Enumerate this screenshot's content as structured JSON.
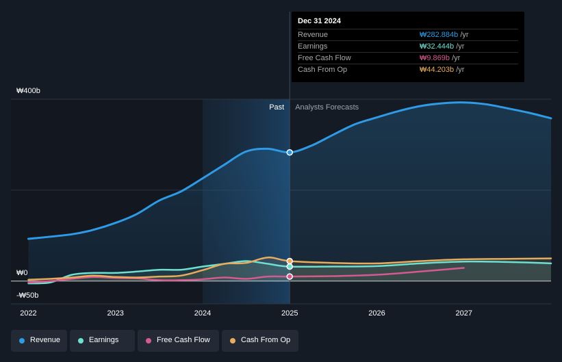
{
  "tooltip": {
    "date": "Dec 31 2024",
    "rows": [
      {
        "label": "Revenue",
        "value": "₩282.884b",
        "unit": "/yr",
        "color": "#2f9be6"
      },
      {
        "label": "Earnings",
        "value": "₩32.444b",
        "unit": "/yr",
        "color": "#6fe0d0"
      },
      {
        "label": "Free Cash Flow",
        "value": "₩9.869b",
        "unit": "/yr",
        "color": "#d45a8f"
      },
      {
        "label": "Cash From Op",
        "value": "₩44.203b",
        "unit": "/yr",
        "color": "#e8ac5e"
      }
    ]
  },
  "legend": [
    {
      "label": "Revenue",
      "color": "#2f9be6"
    },
    {
      "label": "Earnings",
      "color": "#6fe0d0"
    },
    {
      "label": "Free Cash Flow",
      "color": "#d45a8f"
    },
    {
      "label": "Cash From Op",
      "color": "#e8ac5e"
    }
  ],
  "chart_data": {
    "type": "line",
    "title": "",
    "xlabel": "",
    "ylabel": "",
    "currency": "₩",
    "x_ticks": [
      2022,
      2023,
      2024,
      2025,
      2026,
      2027
    ],
    "x_tick_labels": [
      "2022",
      "2023",
      "2024",
      "2025",
      "2026",
      "2027"
    ],
    "xlim": [
      2021.8,
      2028.0
    ],
    "ylim": [
      -50,
      400
    ],
    "y_labels": [
      {
        "value": 400,
        "text": "₩400b"
      },
      {
        "value": 0,
        "text": "₩0"
      },
      {
        "value": -50,
        "text": "-₩50b"
      }
    ],
    "gridlines": [
      400,
      200,
      -50
    ],
    "divider_x": 2025.0,
    "past_start_x": 2024.0,
    "past_label": "Past",
    "forecast_label": "Analysts Forecasts",
    "highlight_x": 2025.0,
    "series": [
      {
        "name": "Revenue",
        "color": "#2f9be6",
        "fill": true,
        "values": [
          [
            2022.0,
            93
          ],
          [
            2022.5,
            103
          ],
          [
            2022.75,
            113
          ],
          [
            2023.0,
            128
          ],
          [
            2023.25,
            148
          ],
          [
            2023.5,
            177
          ],
          [
            2023.75,
            197
          ],
          [
            2024.0,
            226
          ],
          [
            2024.25,
            256
          ],
          [
            2024.5,
            285
          ],
          [
            2024.75,
            291
          ],
          [
            2025.0,
            283
          ],
          [
            2025.25,
            298
          ],
          [
            2025.5,
            322
          ],
          [
            2025.75,
            345
          ],
          [
            2026.0,
            360
          ],
          [
            2026.25,
            374
          ],
          [
            2026.5,
            385
          ],
          [
            2026.75,
            391
          ],
          [
            2027.0,
            393
          ],
          [
            2027.25,
            389
          ],
          [
            2027.5,
            380
          ],
          [
            2027.75,
            370
          ],
          [
            2028.0,
            358
          ]
        ]
      },
      {
        "name": "Earnings",
        "color": "#6fe0d0",
        "fill": true,
        "values": [
          [
            2022.0,
            -5
          ],
          [
            2022.25,
            -3
          ],
          [
            2022.5,
            14
          ],
          [
            2022.75,
            18
          ],
          [
            2023.0,
            18
          ],
          [
            2023.25,
            21
          ],
          [
            2023.5,
            25
          ],
          [
            2023.75,
            25
          ],
          [
            2024.0,
            32
          ],
          [
            2024.25,
            38
          ],
          [
            2024.5,
            44
          ],
          [
            2024.75,
            38
          ],
          [
            2025.0,
            32
          ],
          [
            2025.5,
            32
          ],
          [
            2026.0,
            33
          ],
          [
            2026.5,
            39
          ],
          [
            2027.0,
            43
          ],
          [
            2027.5,
            42
          ],
          [
            2028.0,
            39
          ]
        ]
      },
      {
        "name": "Free Cash Flow",
        "color": "#d45a8f",
        "fill": false,
        "values": [
          [
            2022.0,
            -3
          ],
          [
            2022.25,
            0
          ],
          [
            2022.5,
            5
          ],
          [
            2022.75,
            9
          ],
          [
            2023.0,
            7
          ],
          [
            2023.25,
            6
          ],
          [
            2023.5,
            2
          ],
          [
            2023.75,
            2
          ],
          [
            2024.0,
            4
          ],
          [
            2024.25,
            8
          ],
          [
            2024.5,
            5
          ],
          [
            2024.75,
            10
          ],
          [
            2025.0,
            10
          ],
          [
            2025.5,
            11
          ],
          [
            2026.0,
            14
          ],
          [
            2026.5,
            21
          ],
          [
            2027.0,
            29
          ]
        ]
      },
      {
        "name": "Cash From Op",
        "color": "#e8ac5e",
        "fill": true,
        "values": [
          [
            2022.0,
            3
          ],
          [
            2022.25,
            5
          ],
          [
            2022.5,
            8
          ],
          [
            2022.75,
            12
          ],
          [
            2023.0,
            9
          ],
          [
            2023.25,
            8
          ],
          [
            2023.5,
            10
          ],
          [
            2023.75,
            12
          ],
          [
            2024.0,
            24
          ],
          [
            2024.25,
            38
          ],
          [
            2024.5,
            40
          ],
          [
            2024.75,
            52
          ],
          [
            2025.0,
            44
          ],
          [
            2025.5,
            40
          ],
          [
            2026.0,
            39
          ],
          [
            2026.5,
            44
          ],
          [
            2027.0,
            48
          ],
          [
            2027.5,
            49
          ],
          [
            2028.0,
            50
          ]
        ]
      }
    ]
  }
}
